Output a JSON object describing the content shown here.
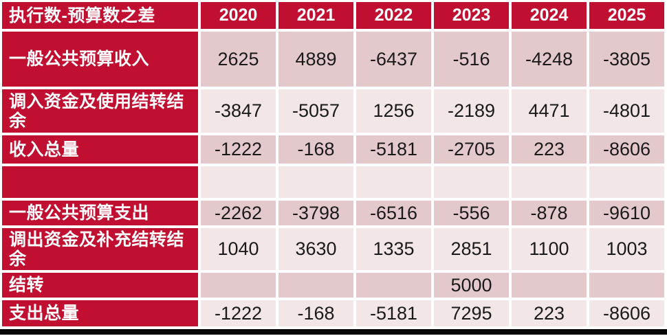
{
  "colors": {
    "header_red": "#c10f31",
    "band_dark": "#e4c9cc",
    "band_light": "#f3e6e6",
    "value_text": "#1a1a1a",
    "grid_white": "#ffffff",
    "bottom_bar": "#050505"
  },
  "table": {
    "corner_label": "执行数-预算数之差",
    "years": [
      "2020",
      "2021",
      "2022",
      "2023",
      "2024",
      "2025"
    ],
    "rows": [
      {
        "label": "一般公共预算收入",
        "values": [
          "2625",
          "4889",
          "-6437",
          "-516",
          "-4248",
          "-3805"
        ]
      },
      {
        "label": "调入资金及使用结转结余",
        "values": [
          "-3847",
          "-5057",
          "1256",
          "-2189",
          "4471",
          "-4801"
        ]
      },
      {
        "label": "收入总量",
        "values": [
          "-1222",
          "-168",
          "-5181",
          "-2705",
          "223",
          "-8606"
        ]
      },
      {
        "label": "",
        "values": [
          "",
          "",
          "",
          "",
          "",
          ""
        ]
      },
      {
        "label": "一般公共预算支出",
        "values": [
          "-2262",
          "-3798",
          "-6516",
          "-556",
          "-878",
          "-9610"
        ]
      },
      {
        "label": "调出资金及补充结转结余",
        "values": [
          "1040",
          "3630",
          "1335",
          "2851",
          "1100",
          "1003"
        ]
      },
      {
        "label": "结转",
        "values": [
          "",
          "",
          "",
          "5000",
          "",
          ""
        ]
      },
      {
        "label": "支出总量",
        "values": [
          "-1222",
          "-168",
          "-5181",
          "7295",
          "223",
          "-8606"
        ]
      }
    ]
  },
  "chart_data": {
    "type": "table",
    "title": "执行数-预算数之差",
    "categories": [
      "2020",
      "2021",
      "2022",
      "2023",
      "2024",
      "2025"
    ],
    "series": [
      {
        "name": "一般公共预算收入",
        "values": [
          2625,
          4889,
          -6437,
          -516,
          -4248,
          -3805
        ]
      },
      {
        "name": "调入资金及使用结转结余",
        "values": [
          -3847,
          -5057,
          1256,
          -2189,
          4471,
          -4801
        ]
      },
      {
        "name": "收入总量",
        "values": [
          -1222,
          -168,
          -5181,
          -2705,
          223,
          -8606
        ]
      },
      {
        "name": "",
        "values": [
          null,
          null,
          null,
          null,
          null,
          null
        ]
      },
      {
        "name": "一般公共预算支出",
        "values": [
          -2262,
          -3798,
          -6516,
          -556,
          -878,
          -9610
        ]
      },
      {
        "name": "调出资金及补充结转结余",
        "values": [
          1040,
          3630,
          1335,
          2851,
          1100,
          1003
        ]
      },
      {
        "name": "结转",
        "values": [
          null,
          null,
          null,
          5000,
          null,
          null
        ]
      },
      {
        "name": "支出总量",
        "values": [
          -1222,
          -168,
          -5181,
          7295,
          223,
          -8606
        ]
      }
    ]
  }
}
